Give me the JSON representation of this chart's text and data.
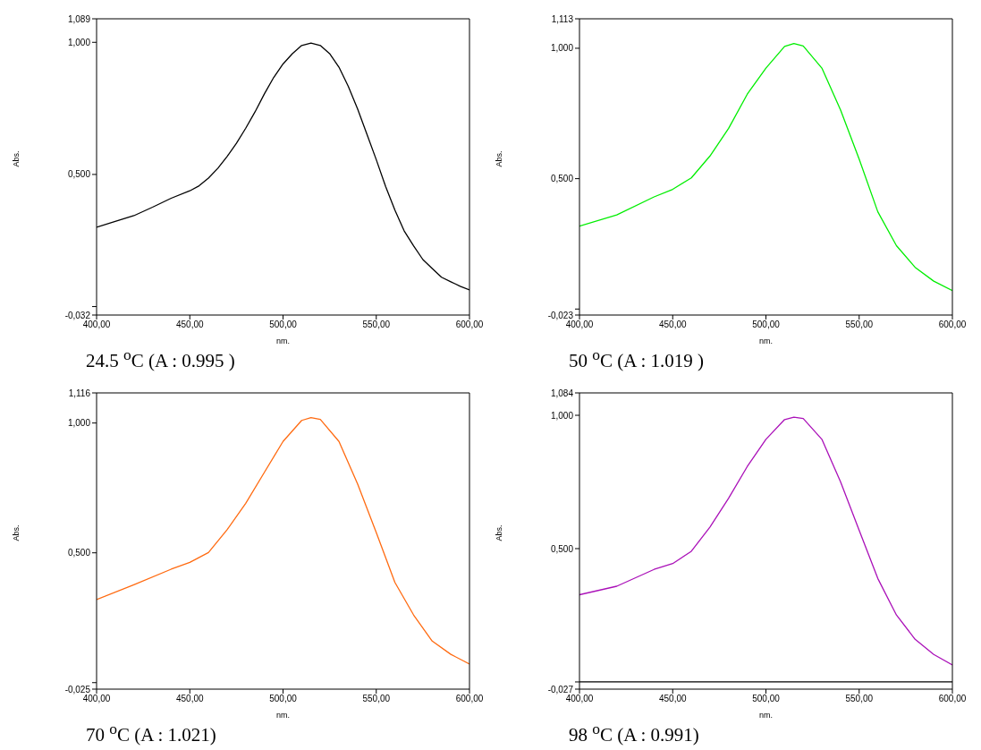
{
  "chart_data": [
    {
      "type": "line",
      "xlabel": "nm.",
      "ylabel": "Abs.",
      "annotations": [
        "24.5 $^{o}$C (A : 0.995 )"
      ],
      "x": [
        400,
        410,
        420,
        430,
        440,
        450,
        455,
        460,
        465,
        470,
        475,
        480,
        485,
        490,
        495,
        500,
        505,
        510,
        515,
        520,
        525,
        530,
        535,
        540,
        545,
        550,
        555,
        560,
        565,
        570,
        575,
        580,
        585,
        590,
        595,
        600
      ],
      "series": [
        {
          "color": "#000000",
          "values": [
            0.3,
            0.322,
            0.344,
            0.376,
            0.41,
            0.438,
            0.457,
            0.486,
            0.523,
            0.568,
            0.618,
            0.675,
            0.737,
            0.805,
            0.867,
            0.918,
            0.957,
            0.988,
            0.997,
            0.988,
            0.957,
            0.906,
            0.833,
            0.748,
            0.652,
            0.556,
            0.455,
            0.365,
            0.286,
            0.23,
            0.178,
            0.144,
            0.111,
            0.094,
            0.077,
            0.063
          ]
        }
      ],
      "xlim": [
        400,
        600
      ],
      "xticks": [
        {
          "value": 400,
          "label": "400,00"
        },
        {
          "value": 450,
          "label": "450,00"
        },
        {
          "value": 500,
          "label": "500,00"
        },
        {
          "value": 550,
          "label": "550,00"
        },
        {
          "value": 600,
          "label": "600,00"
        }
      ],
      "ylim": [
        -0.032,
        1.089
      ],
      "yticks": [
        {
          "value": -0.032,
          "label": "-0,032"
        },
        {
          "value": 0,
          "label": null
        },
        {
          "value": 0.5,
          "label": "0,500"
        },
        {
          "value": 1,
          "label": "1,000"
        },
        {
          "value": 1.089,
          "label": "1,089"
        }
      ],
      "grid": false,
      "legend": false,
      "marker": "none",
      "line_style": "solid"
    },
    {
      "type": "line",
      "xlabel": "nm.",
      "ylabel": "Abs.",
      "annotations": [
        "50 $^{o}$C (A : 1.019 )"
      ],
      "x": [
        400,
        420,
        440,
        450,
        460,
        470,
        480,
        490,
        500,
        510,
        515,
        520,
        530,
        540,
        550,
        560,
        570,
        580,
        590,
        600
      ],
      "series": [
        {
          "color": "#00ee00",
          "values": [
            0.318,
            0.361,
            0.43,
            0.459,
            0.503,
            0.587,
            0.693,
            0.824,
            0.924,
            1.007,
            1.018,
            1.009,
            0.924,
            0.764,
            0.575,
            0.373,
            0.243,
            0.16,
            0.107,
            0.071
          ]
        }
      ],
      "xlim": [
        400,
        600
      ],
      "xticks": [
        {
          "value": 400,
          "label": "400,00"
        },
        {
          "value": 450,
          "label": "450,00"
        },
        {
          "value": 500,
          "label": "500,00"
        },
        {
          "value": 550,
          "label": "550,00"
        },
        {
          "value": 600,
          "label": "600,00"
        }
      ],
      "ylim": [
        -0.023,
        1.113
      ],
      "yticks": [
        {
          "value": -0.023,
          "label": "-0,023"
        },
        {
          "value": 0,
          "label": null
        },
        {
          "value": 0.5,
          "label": "0,500"
        },
        {
          "value": 1,
          "label": "1,000"
        },
        {
          "value": 1.113,
          "label": "1,113"
        }
      ],
      "grid": false,
      "legend": false,
      "marker": "none",
      "line_style": "solid"
    },
    {
      "type": "line",
      "xlabel": "nm.",
      "ylabel": "Abs.",
      "annotations": [
        "70 $^{o}$C (A : 1.021)"
      ],
      "x": [
        400,
        420,
        440,
        450,
        460,
        470,
        480,
        490,
        500,
        510,
        515,
        520,
        530,
        540,
        550,
        560,
        570,
        580,
        590,
        600
      ],
      "series": [
        {
          "color": "#ff6a10",
          "values": [
            0.32,
            0.377,
            0.437,
            0.463,
            0.501,
            0.589,
            0.691,
            0.81,
            0.929,
            1.01,
            1.021,
            1.014,
            0.929,
            0.765,
            0.578,
            0.386,
            0.261,
            0.16,
            0.109,
            0.072
          ]
        }
      ],
      "xlim": [
        400,
        600
      ],
      "xticks": [
        {
          "value": 400,
          "label": "400,00"
        },
        {
          "value": 450,
          "label": "450,00"
        },
        {
          "value": 500,
          "label": "500,00"
        },
        {
          "value": 550,
          "label": "550,00"
        },
        {
          "value": 600,
          "label": "600,00"
        }
      ],
      "ylim": [
        -0.025,
        1.116
      ],
      "yticks": [
        {
          "value": -0.025,
          "label": "-0,025"
        },
        {
          "value": 0,
          "label": null
        },
        {
          "value": 0.5,
          "label": "0,500"
        },
        {
          "value": 1,
          "label": "1,000"
        },
        {
          "value": 1.116,
          "label": "1,116"
        }
      ],
      "grid": false,
      "legend": false,
      "marker": "none",
      "line_style": "solid"
    },
    {
      "type": "line",
      "xlabel": "nm.",
      "ylabel": "Abs.",
      "annotations": [
        "98 $^{o}$C (A : 0.991)"
      ],
      "x": [
        400,
        420,
        440,
        450,
        460,
        470,
        480,
        490,
        500,
        510,
        515,
        520,
        530,
        540,
        550,
        560,
        570,
        580,
        590,
        600
      ],
      "series": [
        {
          "color": "#aa10b8",
          "values": [
            0.327,
            0.359,
            0.422,
            0.444,
            0.49,
            0.581,
            0.689,
            0.808,
            0.91,
            0.984,
            0.993,
            0.988,
            0.91,
            0.751,
            0.569,
            0.388,
            0.251,
            0.16,
            0.103,
            0.064
          ]
        }
      ],
      "xlim": [
        400,
        600
      ],
      "xticks": [
        {
          "value": 400,
          "label": "400,00"
        },
        {
          "value": 450,
          "label": "450,00"
        },
        {
          "value": 500,
          "label": "500,00"
        },
        {
          "value": 550,
          "label": "550,00"
        },
        {
          "value": 600,
          "label": "600,00"
        }
      ],
      "ylim": [
        -0.027,
        1.084
      ],
      "yticks": [
        {
          "value": -0.027,
          "label": "-0,027"
        },
        {
          "value": 0,
          "label": null
        },
        {
          "value": 0.5,
          "label": "0,500"
        },
        {
          "value": 1,
          "label": "1,000"
        },
        {
          "value": 1.084,
          "label": "1,084"
        }
      ],
      "grid": false,
      "legend": false,
      "marker": "none",
      "line_style": "solid",
      "ref_lines": [
        {
          "axis": "y",
          "value": 0,
          "color": "#000000"
        }
      ]
    }
  ]
}
